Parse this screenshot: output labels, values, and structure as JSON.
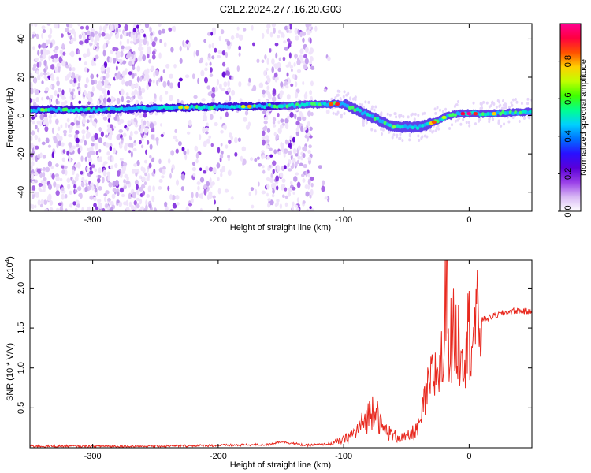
{
  "title": "C2E2.2024.277.16.20.G03",
  "chart_data": [
    {
      "type": "heatmap",
      "xlabel": "Height of straight line (km)",
      "ylabel": "Frequency (Hz)",
      "xlim": [
        -350,
        50
      ],
      "ylim": [
        -50,
        48
      ],
      "xticks": [
        -300,
        -200,
        -100,
        0
      ],
      "yticks": [
        -40,
        -20,
        0,
        20,
        40
      ],
      "colorbar": {
        "label": "Normalized spectral amplitude",
        "range": [
          0,
          1
        ],
        "ticks": [
          "0.0",
          "0.2",
          "0.4",
          "0.6",
          "0.8"
        ],
        "colors": [
          "#ffffff",
          "#d8b8f4",
          "#9a40e8",
          "#5a00d8",
          "#2a10ff",
          "#0070ff",
          "#00d0ff",
          "#00ff90",
          "#40ff00",
          "#c0ff00",
          "#ffd000",
          "#ff5000",
          "#ff0040",
          "#ff0090"
        ]
      },
      "ridge": {
        "x": [
          -350,
          -300,
          -250,
          -200,
          -150,
          -120,
          -100,
          -80,
          -60,
          -40,
          -30,
          -20,
          -10,
          0,
          20,
          50
        ],
        "y": [
          3,
          3,
          4,
          4.5,
          5,
          6,
          6,
          0,
          -6,
          -6,
          -4,
          -1,
          1,
          1,
          1,
          2
        ]
      }
    },
    {
      "type": "line",
      "xlabel": "Height of straight line (km)",
      "ylabel": "SNR (10 * V/V)",
      "y_multiplier": "(x10",
      "y_multiplier_exp": "4",
      "y_multiplier_close": ")",
      "xlim": [
        -350,
        50
      ],
      "ylim": [
        0,
        2.35
      ],
      "xticks": [
        -300,
        -200,
        -100,
        0
      ],
      "yticks": [
        "0.5",
        "1.0",
        "1.5",
        "2.0"
      ],
      "series": [
        {
          "color": "#e8281e",
          "x": [
            -350,
            -300,
            -250,
            -200,
            -160,
            -150,
            -130,
            -110,
            -100,
            -90,
            -85,
            -78,
            -75,
            -70,
            -60,
            -50,
            -40,
            -35,
            -30,
            -25,
            -20,
            -18,
            -16,
            -12,
            -10,
            -5,
            0,
            10,
            20,
            30,
            40,
            50
          ],
          "y": [
            0.02,
            0.02,
            0.02,
            0.03,
            0.04,
            0.08,
            0.03,
            0.05,
            0.1,
            0.2,
            0.3,
            0.45,
            0.6,
            0.25,
            0.15,
            0.12,
            0.25,
            0.6,
            0.85,
            1.0,
            1.1,
            2.35,
            1.3,
            1.4,
            1.35,
            1.3,
            1.45,
            1.6,
            1.65,
            1.7,
            1.72,
            1.7
          ]
        }
      ]
    }
  ]
}
